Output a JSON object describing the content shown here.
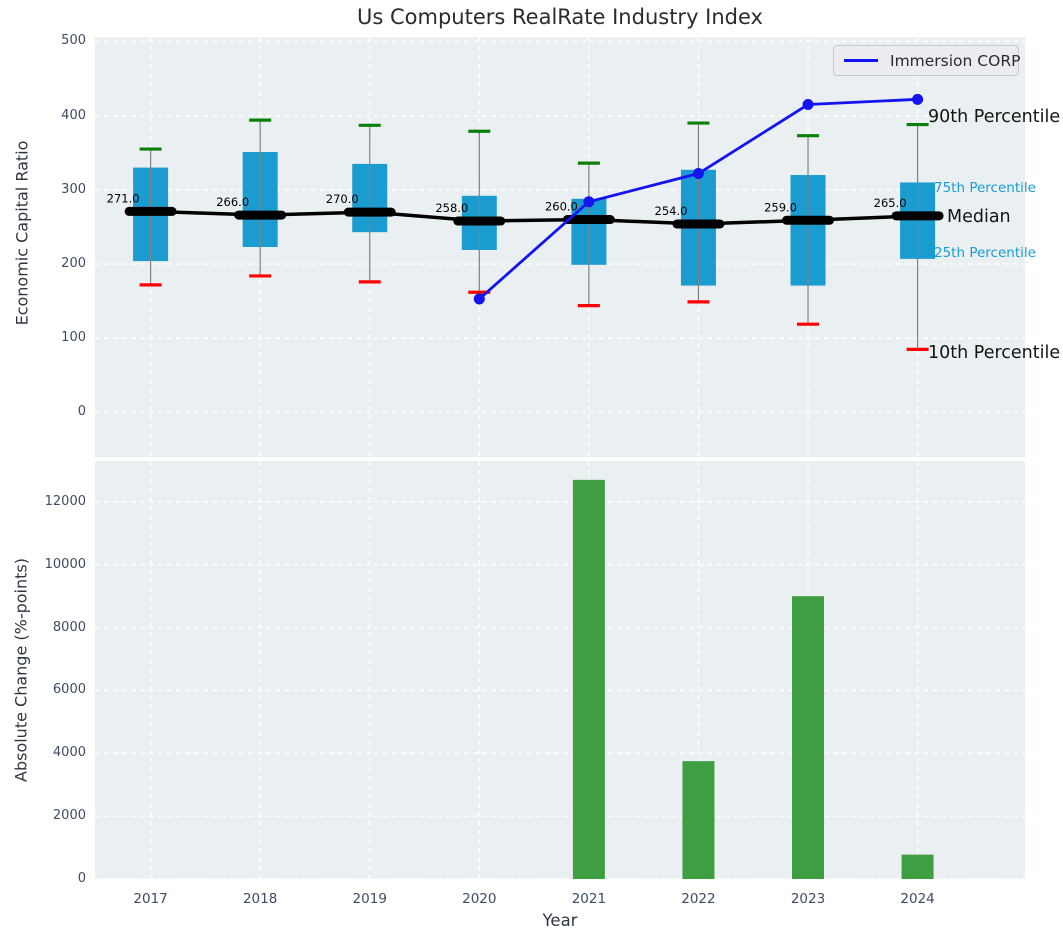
{
  "figure": {
    "title": "Us Computers RealRate Industry Index"
  },
  "legend": {
    "label": "Immersion CORP"
  },
  "annotations": {
    "p90": "90th Percentile",
    "p75": "75th Percentile",
    "median": "Median",
    "p25": "25th Percentile",
    "p10": "10th Percentile"
  },
  "colors": {
    "plot_background": "#eaeff1",
    "grid": "#ffffff",
    "box": "#1b9cd0",
    "whisker": "#808080",
    "cap_90": "#0a800a",
    "cap_10": "#ff0000",
    "median": "#000000",
    "company_line": "#1414f0",
    "bar": "#3f9e41",
    "tick_text": "#3d4c63",
    "annotation_dark": "#141414",
    "annotation_cyan": "#1b9cd4"
  },
  "chart_data": [
    {
      "type": "boxplot+line",
      "title": "Us Computers RealRate Industry Index",
      "ylabel": "Economic Capital Ratio",
      "ylim": [
        -60,
        506
      ],
      "yticks": [
        0,
        100,
        200,
        300,
        400,
        500
      ],
      "categories": [
        "2017",
        "2018",
        "2019",
        "2020",
        "2021",
        "2022",
        "2023",
        "2024"
      ],
      "series": [
        {
          "name": "10th Percentile",
          "values": [
            172,
            184,
            176,
            162,
            144,
            149,
            119,
            85
          ]
        },
        {
          "name": "25th Percentile",
          "values": [
            204,
            223,
            243,
            219,
            199,
            171,
            171,
            207
          ]
        },
        {
          "name": "Median",
          "values": [
            271,
            266,
            270,
            258,
            260,
            254,
            259,
            265
          ]
        },
        {
          "name": "75th Percentile",
          "values": [
            330,
            351,
            335,
            292,
            288,
            327,
            320,
            310
          ]
        },
        {
          "name": "90th Percentile",
          "values": [
            355,
            394,
            387,
            379,
            336,
            390,
            373,
            388
          ]
        },
        {
          "name": "Immersion CORP",
          "values": [
            null,
            null,
            null,
            153,
            284,
            322,
            415,
            422
          ]
        }
      ],
      "median_labels": [
        "271.0",
        "266.0",
        "270.0",
        "258.0",
        "260.0",
        "254.0",
        "259.0",
        "265.0"
      ],
      "legend_entries": [
        "Immersion CORP"
      ],
      "legend_position": "upper right",
      "grid": true
    },
    {
      "type": "bar",
      "xlabel": "Year",
      "ylabel": "Absolute Change (%-points)",
      "ylim": [
        0,
        13300
      ],
      "yticks": [
        0,
        2000,
        4000,
        6000,
        8000,
        10000,
        12000
      ],
      "categories": [
        "2017",
        "2018",
        "2019",
        "2020",
        "2021",
        "2022",
        "2023",
        "2024"
      ],
      "values": [
        0,
        0,
        0,
        0,
        12700,
        3750,
        9000,
        775
      ],
      "grid": true
    }
  ]
}
